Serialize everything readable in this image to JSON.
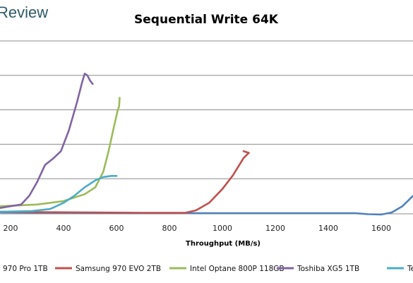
{
  "watermark": "Review",
  "chart_data": {
    "type": "line",
    "title": "Sequential Write 64K",
    "xlabel": "Throughput (MB/s)",
    "ylabel": "",
    "xlim": [
      160,
      1720
    ],
    "ylim": [
      0,
      5
    ],
    "xticks": [
      "200",
      "400",
      "600",
      "800",
      "1000",
      "1200",
      "1400",
      "1600"
    ],
    "xtick_values": [
      200,
      400,
      600,
      800,
      1000,
      1200,
      1400,
      1600
    ],
    "grid": true,
    "legend_position": "bottom",
    "series": [
      {
        "name": "970 Pro 1TB",
        "color": "#4f81bd",
        "points": [
          [
            160,
            0.02
          ],
          [
            400,
            0.01
          ],
          [
            700,
            0.0
          ],
          [
            1000,
            0.0
          ],
          [
            1300,
            0.0
          ],
          [
            1500,
            0.0
          ],
          [
            1550,
            -0.03
          ],
          [
            1600,
            -0.04
          ],
          [
            1640,
            0.02
          ],
          [
            1680,
            0.2
          ],
          [
            1720,
            0.5
          ]
        ]
      },
      {
        "name": "Samsung 970 EVO 2TB",
        "color": "#c0504d",
        "points": [
          [
            160,
            0.04
          ],
          [
            300,
            0.03
          ],
          [
            500,
            0.02
          ],
          [
            700,
            0.01
          ],
          [
            860,
            0.01
          ],
          [
            900,
            0.08
          ],
          [
            950,
            0.3
          ],
          [
            1000,
            0.7
          ],
          [
            1040,
            1.1
          ],
          [
            1080,
            1.6
          ],
          [
            1100,
            1.75
          ],
          [
            1080,
            1.8
          ]
        ]
      },
      {
        "name": "Intel Optane 800P 118GB",
        "color": "#9bbb59",
        "points": [
          [
            160,
            0.2
          ],
          [
            300,
            0.25
          ],
          [
            400,
            0.35
          ],
          [
            480,
            0.55
          ],
          [
            520,
            0.75
          ],
          [
            550,
            1.2
          ],
          [
            570,
            1.8
          ],
          [
            590,
            2.5
          ],
          [
            605,
            3.0
          ],
          [
            610,
            3.1
          ],
          [
            612,
            3.35
          ]
        ]
      },
      {
        "name": "Toshiba XG5 1TB",
        "color": "#8064a2",
        "points": [
          [
            160,
            0.15
          ],
          [
            200,
            0.2
          ],
          [
            240,
            0.25
          ],
          [
            270,
            0.5
          ],
          [
            300,
            0.9
          ],
          [
            330,
            1.4
          ],
          [
            360,
            1.58
          ],
          [
            390,
            1.8
          ],
          [
            420,
            2.4
          ],
          [
            450,
            3.2
          ],
          [
            470,
            3.8
          ],
          [
            480,
            4.05
          ],
          [
            490,
            4.0
          ],
          [
            500,
            3.85
          ],
          [
            510,
            3.75
          ]
        ]
      },
      {
        "name": "Te",
        "color": "#4bacc6",
        "points": [
          [
            160,
            0.04
          ],
          [
            280,
            0.06
          ],
          [
            350,
            0.12
          ],
          [
            400,
            0.3
          ],
          [
            440,
            0.5
          ],
          [
            480,
            0.75
          ],
          [
            520,
            0.95
          ],
          [
            550,
            1.05
          ],
          [
            580,
            1.08
          ],
          [
            600,
            1.08
          ]
        ]
      }
    ]
  }
}
